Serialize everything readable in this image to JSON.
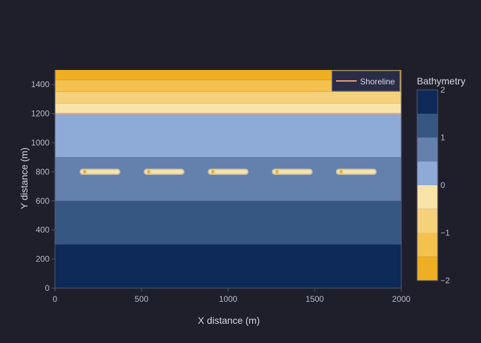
{
  "chart_data": {
    "type": "heatmap",
    "title": "",
    "xlabel": "X distance (m)",
    "ylabel": "Y distance (m)",
    "xlim": [
      0,
      2000
    ],
    "ylim": [
      0,
      1500
    ],
    "xticks": [
      "0",
      "500",
      "1000",
      "1500",
      "2000"
    ],
    "xtick_values": [
      0,
      500,
      1000,
      1500,
      2000
    ],
    "yticks": [
      "0",
      "200",
      "400",
      "600",
      "800",
      "1000",
      "1200",
      "1400"
    ],
    "ytick_values": [
      0,
      200,
      400,
      600,
      800,
      1000,
      1200,
      1400
    ],
    "grid": false,
    "legend_position": "top-right",
    "colorbar": {
      "title": "Bathymetry",
      "range": [
        -2,
        2
      ],
      "ticks": [
        "2",
        "1",
        "0",
        "−1",
        "−2"
      ],
      "tick_values": [
        2,
        1,
        0,
        -1,
        -2
      ],
      "bands": [
        {
          "from": 1.5,
          "to": 2.0,
          "color": "#0d2a58"
        },
        {
          "from": 1.0,
          "to": 1.5,
          "color": "#375783"
        },
        {
          "from": 0.5,
          "to": 1.0,
          "color": "#6480ad"
        },
        {
          "from": 0.0,
          "to": 0.5,
          "color": "#8eaad7"
        },
        {
          "from": -0.5,
          "to": 0.0,
          "color": "#fae3a9"
        },
        {
          "from": -1.0,
          "to": -0.5,
          "color": "#f6d17c"
        },
        {
          "from": -1.5,
          "to": -1.0,
          "color": "#f3c14e"
        },
        {
          "from": -2.0,
          "to": -1.5,
          "color": "#efaf22"
        }
      ]
    },
    "depth_zones": [
      {
        "y_from": 0,
        "y_to": 300,
        "level": 1.75
      },
      {
        "y_from": 300,
        "y_to": 600,
        "level": 1.25
      },
      {
        "y_from": 600,
        "y_to": 900,
        "level": 0.75
      },
      {
        "y_from": 900,
        "y_to": 1200,
        "level": 0.25
      },
      {
        "y_from": 1200,
        "y_to": 1270,
        "level": -0.25
      },
      {
        "y_from": 1270,
        "y_to": 1350,
        "level": -0.75
      },
      {
        "y_from": 1350,
        "y_to": 1430,
        "level": -1.25
      },
      {
        "y_from": 1430,
        "y_to": 1500,
        "level": -1.75
      }
    ],
    "series": [
      {
        "name": "Shoreline",
        "type": "line",
        "color": "#e8a47c",
        "x": [
          0,
          2000
        ],
        "y": [
          1200,
          1200
        ]
      },
      {
        "type": "structures",
        "color": "#fae3a9",
        "y": 800,
        "segments": [
          [
            160,
            360
          ],
          [
            530,
            730
          ],
          [
            900,
            1100
          ],
          [
            1270,
            1470
          ],
          [
            1640,
            1840
          ]
        ]
      }
    ]
  }
}
